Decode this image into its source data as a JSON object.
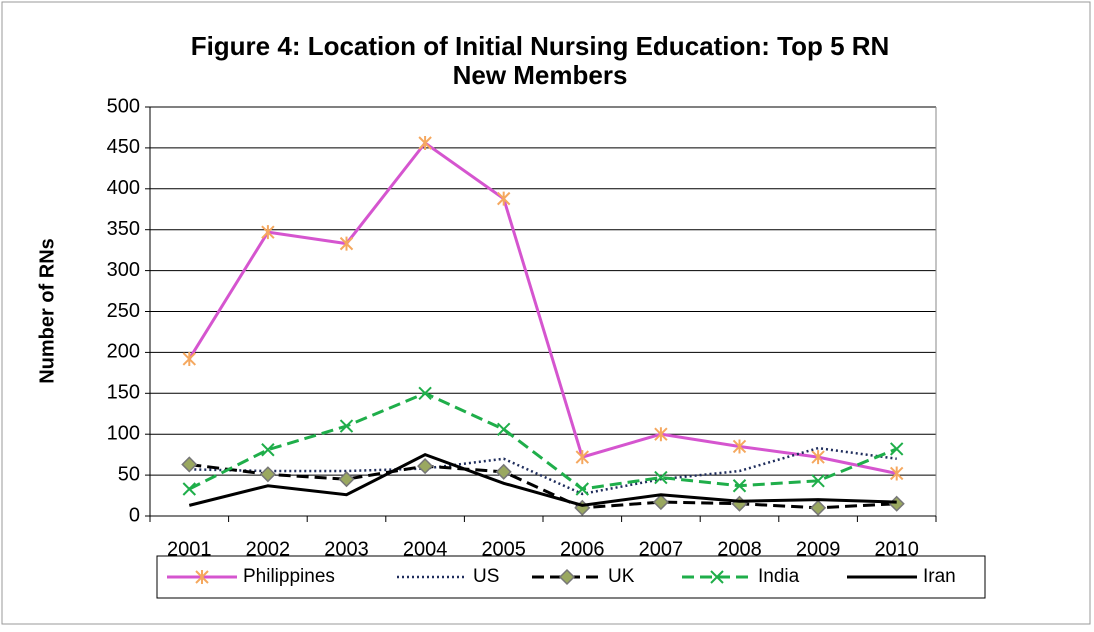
{
  "chart_data": {
    "type": "line",
    "title": "Figure 4: Location of Initial Nursing Education: Top 5 RN",
    "subtitle": "New Members",
    "y_label": "Number of RNs",
    "categories": [
      "2001",
      "2002",
      "2003",
      "2004",
      "2005",
      "2006",
      "2007",
      "2008",
      "2009",
      "2010"
    ],
    "series": [
      {
        "name": "Philippines",
        "color": "#d555cf",
        "marker_color": "#f5a85f",
        "dash": "solid",
        "marker": "asterisk",
        "values": [
          192,
          347,
          333,
          456,
          388,
          72,
          100,
          85,
          72,
          52
        ]
      },
      {
        "name": "US",
        "color": "#1f2d5c",
        "dash": "dotted",
        "marker": "none",
        "values": [
          57,
          55,
          55,
          58,
          70,
          27,
          45,
          55,
          83,
          70
        ]
      },
      {
        "name": "UK",
        "color": "#000000",
        "marker_color": "#9aa860",
        "dash": "dashed",
        "marker": "diamond",
        "values": [
          63,
          51,
          45,
          61,
          54,
          10,
          17,
          15,
          10,
          15
        ]
      },
      {
        "name": "India",
        "color": "#1fae4a",
        "dash": "dashed",
        "marker": "x",
        "values": [
          33,
          81,
          110,
          150,
          106,
          33,
          47,
          37,
          43,
          82
        ]
      },
      {
        "name": "Iran",
        "color": "#000000",
        "dash": "solid",
        "marker": "none",
        "values": [
          13,
          37,
          26,
          75,
          40,
          13,
          26,
          18,
          20,
          17
        ]
      }
    ],
    "ylim": [
      0,
      500
    ],
    "yticks": [
      0,
      50,
      100,
      150,
      200,
      250,
      300,
      350,
      400,
      450,
      500
    ],
    "grid": true,
    "legend": "bottom"
  }
}
